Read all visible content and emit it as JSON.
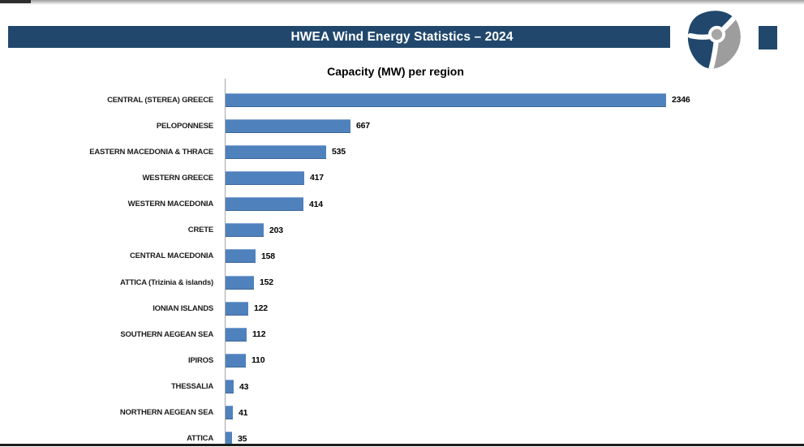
{
  "window": {
    "banner_title": "HWEA Wind Energy Statistics – 2024",
    "banner_bg": "#21486C"
  },
  "logo": {
    "name": "hwea-wind-turbine-logo",
    "navy": "#21486C",
    "gray": "#9D9D9D"
  },
  "chart_data": {
    "type": "bar",
    "orientation": "horizontal",
    "title": "Capacity (MW) per region",
    "categories": [
      "CENTRAL (STEREA) GREECE",
      "PELOPONNESE",
      "EASTERN MACEDONIA & THRACE",
      "WESTERN GREECE",
      "WESTERN MACEDONIA",
      "CRETE",
      "CENTRAL MACEDONIA",
      "ATTICA (Trizinia & islands)",
      "IONIAN ISLANDS",
      "SOUTHERN AEGEAN SEA",
      "IPIROS",
      "THESSALIA",
      "NORTHERN AEGEAN SEA",
      "ATTICA"
    ],
    "values": [
      2346,
      667,
      535,
      417,
      414,
      203,
      158,
      152,
      122,
      112,
      110,
      43,
      41,
      35
    ],
    "bar_color": "#4F81BD",
    "axis_line_color": "#A6A6A6",
    "value_labels": true,
    "xlim": [
      0,
      2400
    ],
    "gridlines": false,
    "legend": "none"
  }
}
